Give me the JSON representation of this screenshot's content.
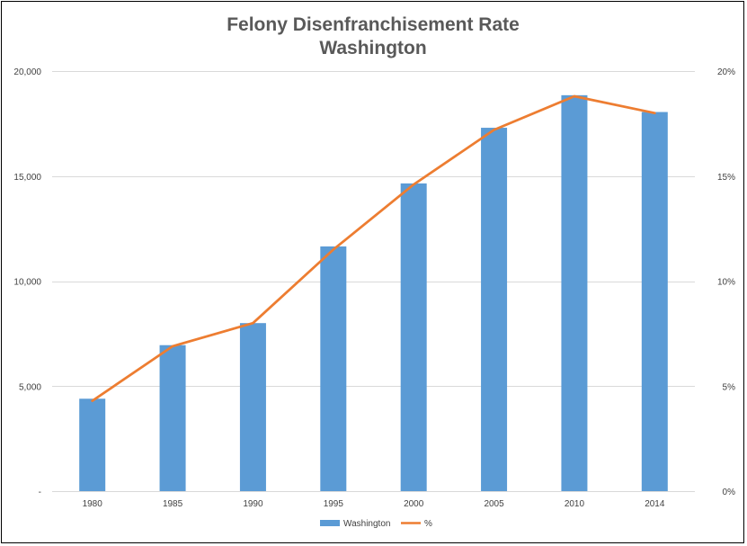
{
  "chart_data": {
    "type": "bar",
    "title": [
      "Felony Disenfranchisement Rate",
      "Washington"
    ],
    "categories": [
      "1980",
      "1985",
      "1990",
      "1995",
      "2000",
      "2005",
      "2010",
      "2014"
    ],
    "series": [
      {
        "name": "Washington",
        "type": "bar",
        "axis": "left",
        "color": "#5B9BD5",
        "values": [
          4400,
          6950,
          8000,
          11650,
          14650,
          17300,
          18850,
          18050
        ]
      },
      {
        "name": "%",
        "type": "line",
        "axis": "right",
        "color": "#ED7D31",
        "values": [
          4.3,
          6.9,
          8.0,
          11.5,
          14.6,
          17.2,
          18.8,
          18.0
        ]
      }
    ],
    "y_left": {
      "min": 0,
      "max": 20000,
      "ticks": [
        0,
        5000,
        10000,
        15000,
        20000
      ],
      "tick_labels": [
        "-",
        "5,000",
        "10,000",
        "15,000",
        "20,000"
      ]
    },
    "y_right": {
      "min": 0,
      "max": 20,
      "ticks": [
        0,
        5,
        10,
        15,
        20
      ],
      "tick_labels": [
        "0%",
        "5%",
        "10%",
        "15%",
        "20%"
      ]
    },
    "grid": true,
    "legend_position": "bottom"
  }
}
